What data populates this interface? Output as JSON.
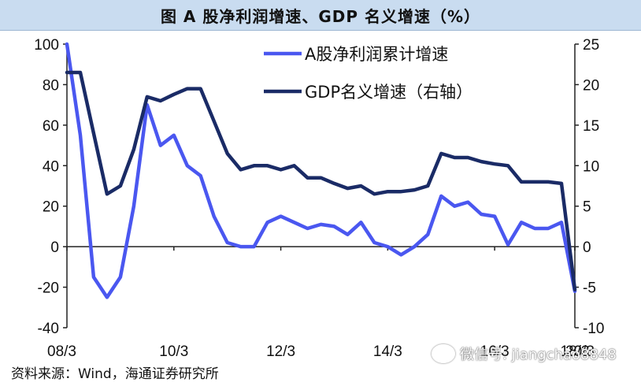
{
  "title": "图    A 股净利润增速、GDP 名义增速（%）",
  "source": "资料来源：Wind，海通证券研究所",
  "watermark": "微信号: jiangchao8848",
  "chart_data": {
    "type": "line",
    "title": "图    A 股净利润增速、GDP 名义增速（%）",
    "x_start": "2008-03",
    "x_step_quarters": 1,
    "x_tick_labels": [
      "08/3",
      "10/3",
      "12/3",
      "14/3",
      "16/3",
      "18/3",
      "20/3"
    ],
    "y_left": {
      "range": [
        -40,
        100
      ],
      "ticks": [
        -40,
        -20,
        0,
        20,
        40,
        60,
        80,
        100
      ]
    },
    "y_right": {
      "range": [
        -10,
        25
      ],
      "ticks": [
        -10,
        -5,
        0,
        5,
        10,
        15,
        20,
        25
      ]
    },
    "legend_position": "top-right",
    "series": [
      {
        "name": "A股净利润累计增速",
        "axis": "left",
        "color": "#4a57f0",
        "values": [
          100,
          55,
          -15,
          -25,
          -15,
          20,
          70,
          50,
          55,
          40,
          35,
          15,
          2,
          0,
          0,
          12,
          15,
          12,
          9,
          11,
          10,
          6,
          12,
          2,
          0,
          -4,
          0,
          6,
          25,
          20,
          22,
          16,
          15,
          1,
          12,
          9,
          9,
          12,
          -22
        ]
      },
      {
        "name": "GDP名义增速（右轴）",
        "axis": "right",
        "color": "#1a2b66",
        "values": [
          21.5,
          21.5,
          14,
          6.5,
          7.5,
          12,
          18.5,
          18,
          18.8,
          19.5,
          19.5,
          15.5,
          11.5,
          9.5,
          10,
          10,
          9.5,
          10,
          8.5,
          8.5,
          7.8,
          7.2,
          7.5,
          6.5,
          6.8,
          6.8,
          7,
          7.5,
          11.5,
          11,
          11,
          10.5,
          10.2,
          10,
          8,
          8,
          8,
          7.8,
          -5.3
        ]
      }
    ]
  }
}
